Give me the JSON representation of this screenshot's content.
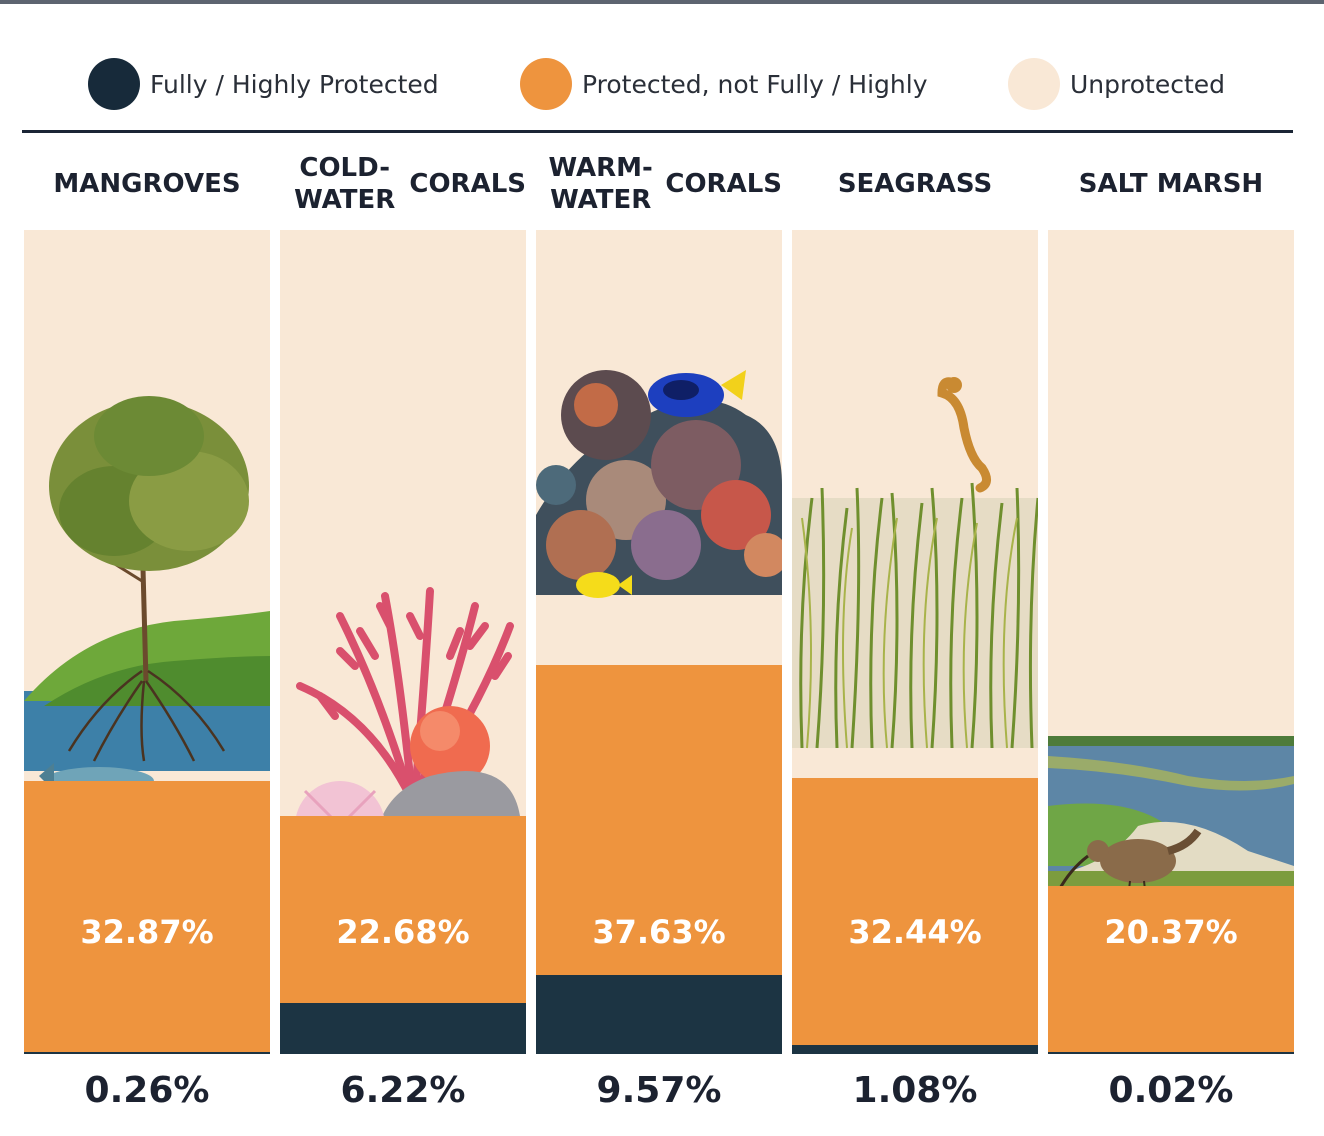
{
  "legend": {
    "fully": {
      "label": "Fully / Highly Protected",
      "color": "#172a3a"
    },
    "protected": {
      "label": "Protected, not Fully / Highly",
      "color": "#ee943e"
    },
    "unprotected": {
      "label": "Unprotected",
      "color": "#f9e8d6"
    }
  },
  "chart_data": {
    "type": "bar",
    "stacked": true,
    "categories": [
      "MANGROVES",
      "COLD-WATER CORALS",
      "WARM-WATER CORALS",
      "SEAGRASS",
      "SALT MARSH"
    ],
    "series": [
      {
        "name": "Fully / Highly Protected",
        "values": [
          0.26,
          6.22,
          9.57,
          1.08,
          0.02
        ],
        "labels": [
          "0.26%",
          "6.22%",
          "9.57%",
          "1.08%",
          "0.02%"
        ]
      },
      {
        "name": "Protected, not Fully / Highly",
        "values": [
          32.87,
          22.68,
          37.63,
          32.44,
          20.37
        ],
        "labels": [
          "32.87%",
          "22.68%",
          "37.63%",
          "32.44%",
          "20.37%"
        ]
      }
    ],
    "ylim": [
      0,
      100
    ],
    "legend_position": "top",
    "grid": false
  },
  "columns": [
    {
      "label_lines": [
        "MANGROVES"
      ],
      "illustration": "mangrove-tree-with-fish"
    },
    {
      "label_lines": [
        "COLD-WATER",
        "CORALS"
      ],
      "illustration": "cold-water-coral"
    },
    {
      "label_lines": [
        "WARM-WATER",
        "CORALS"
      ],
      "illustration": "warm-water-coral-reef-with-fish"
    },
    {
      "label_lines": [
        "SEAGRASS"
      ],
      "illustration": "seagrass-with-seahorse"
    },
    {
      "label_lines": [
        "SALT MARSH"
      ],
      "illustration": "salt-marsh-with-curlew"
    }
  ]
}
